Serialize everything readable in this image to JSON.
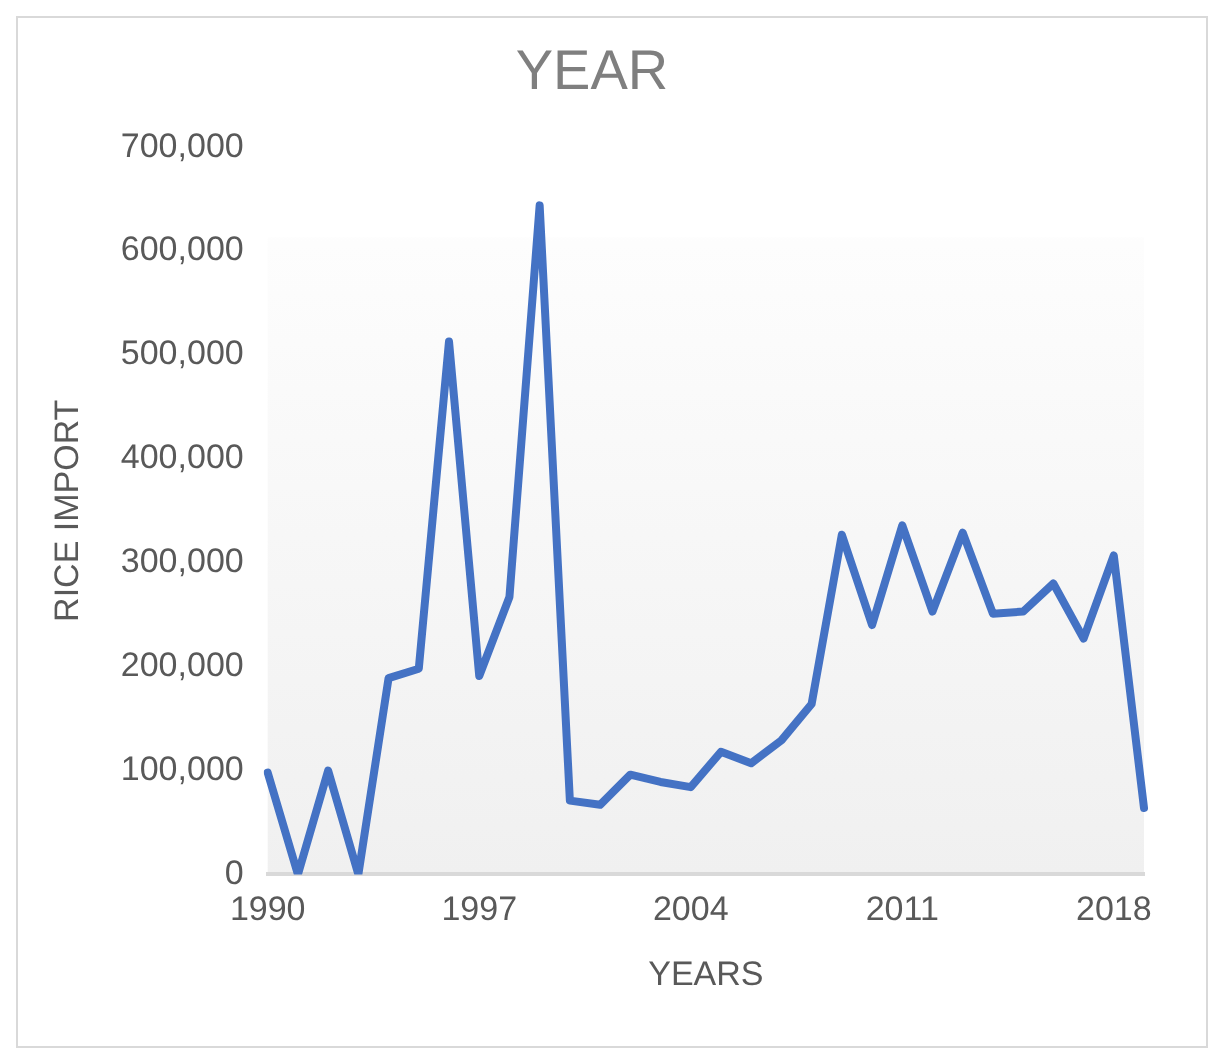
{
  "chart_data": {
    "type": "line",
    "title": "YEAR",
    "xlabel": "YEARS",
    "ylabel": "RICE IMPORT",
    "categories": [
      "1990",
      null,
      null,
      null,
      null,
      null,
      null,
      "1997",
      null,
      null,
      null,
      null,
      null,
      null,
      "2004",
      null,
      null,
      null,
      null,
      null,
      null,
      "2011",
      null,
      null,
      null,
      null,
      null,
      null,
      "2018",
      null
    ],
    "series": [
      {
        "color": "#4472c4",
        "values": [
          98000,
          0,
          100000,
          0,
          189000,
          198000,
          513000,
          191000,
          267000,
          644000,
          71000,
          67000,
          96000,
          89000,
          84000,
          118000,
          107000,
          129000,
          164000,
          327000,
          240000,
          336000,
          253000,
          329000,
          251000,
          253000,
          280000,
          227000,
          307000,
          64000
        ]
      }
    ],
    "ylim": [
      0,
      700000
    ],
    "yticks": [
      0,
      {
        "value": 100000,
        "label": "100,000"
      },
      {
        "value": 200000,
        "label": "200,000"
      },
      {
        "value": 300000,
        "label": "300,000"
      },
      {
        "value": 400000,
        "label": "400,000"
      },
      {
        "value": 500000,
        "label": "500,000"
      },
      {
        "value": 600000,
        "label": "600,000"
      },
      {
        "value": 700000,
        "label": "700,000"
      }
    ],
    "grid": false,
    "legend": false,
    "marker": "none",
    "line_style": "solid"
  }
}
